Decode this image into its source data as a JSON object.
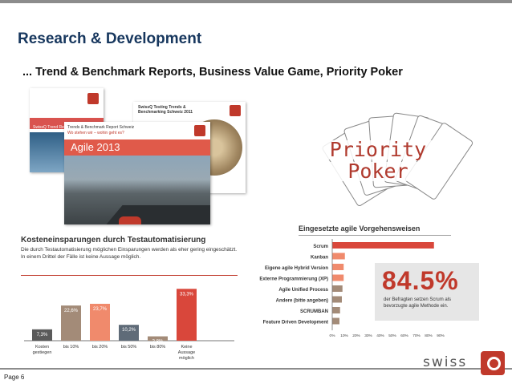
{
  "header": {
    "title": "Research & Development",
    "subtitle": "... Trend & Benchmark Reports, Business Value Game, Priority Poker"
  },
  "covers": {
    "back1_band": "SwissQ Trend Report",
    "back2_title": "SwissQ Testing Trends & Benchmarking Schweiz 2011",
    "front_header": "Trends & Benchmark Report Schweiz",
    "front_subheader": "Wo stehen wir – wohin geht es?",
    "front_band": "Agile 2013"
  },
  "priority_poker": {
    "line1": "Priority",
    "line2": "Poker"
  },
  "savings_chart": {
    "title": "Kosteneinsparungen durch Testautomatisierung",
    "description": "Die durch Testautomatisierung möglichen Einsparungen werden als eher gering eingeschätzt. In einem Drittel der Fälle ist keine Aussage möglich."
  },
  "agile_chart": {
    "title": "Eingesetzte agile Vorgehensweisen",
    "highlight_value": "84.5%",
    "highlight_note": "der Befragten setzen Scrum als bevorzugte agile Methode ein."
  },
  "chart_data": [
    {
      "type": "bar",
      "title": "Kosteneinsparungen durch Testautomatisierung",
      "categories": [
        "Kosten gestiegen",
        "bis 10%",
        "bis 20%",
        "bis 50%",
        "bis 80%",
        "Keine Aussage möglich"
      ],
      "category_lines": [
        [
          "Kosten",
          "gestiegen"
        ],
        [
          "bis 10%"
        ],
        [
          "bis 20%"
        ],
        [
          "bis 50%"
        ],
        [
          "bis 80%"
        ],
        [
          "Keine",
          "Aussage",
          "möglich"
        ]
      ],
      "values": [
        7.3,
        22.6,
        23.7,
        10.2,
        2.8,
        33.3
      ],
      "labels": [
        "7,3%",
        "22,6%",
        "23,7%",
        "10,2%",
        "2,8%",
        "33,3%"
      ],
      "colors": [
        "#5a5a5a",
        "#a38b78",
        "#f08a6c",
        "#5f6b78",
        "#a38b78",
        "#d9473b"
      ],
      "ylim": [
        0,
        35
      ]
    },
    {
      "type": "bar",
      "orientation": "horizontal",
      "title": "Eingesetzte agile Vorgehensweisen",
      "categories": [
        "Scrum",
        "Kanban",
        "Eigene agile Hybrid Version",
        "Externe Programmierung (XP)",
        "Agile Unified Process",
        "Andere (bitte angeben)",
        "SCRUMBAN",
        "Feature Driven Development"
      ],
      "values": [
        84.5,
        10.5,
        9.5,
        9.5,
        8.5,
        8.0,
        6.5,
        6.0
      ],
      "colors": [
        "#d9473b",
        "#f08a6c",
        "#f08a6c",
        "#f08a6c",
        "#a38b78",
        "#a38b78",
        "#a38b78",
        "#a38b78"
      ],
      "xlim": [
        0,
        90
      ],
      "xticks": [
        "0%",
        "10%",
        "20%",
        "30%",
        "40%",
        "50%",
        "60%",
        "70%",
        "80%",
        "90%"
      ]
    }
  ],
  "footer": {
    "page": "Page 6",
    "logo_word": "swiss"
  }
}
